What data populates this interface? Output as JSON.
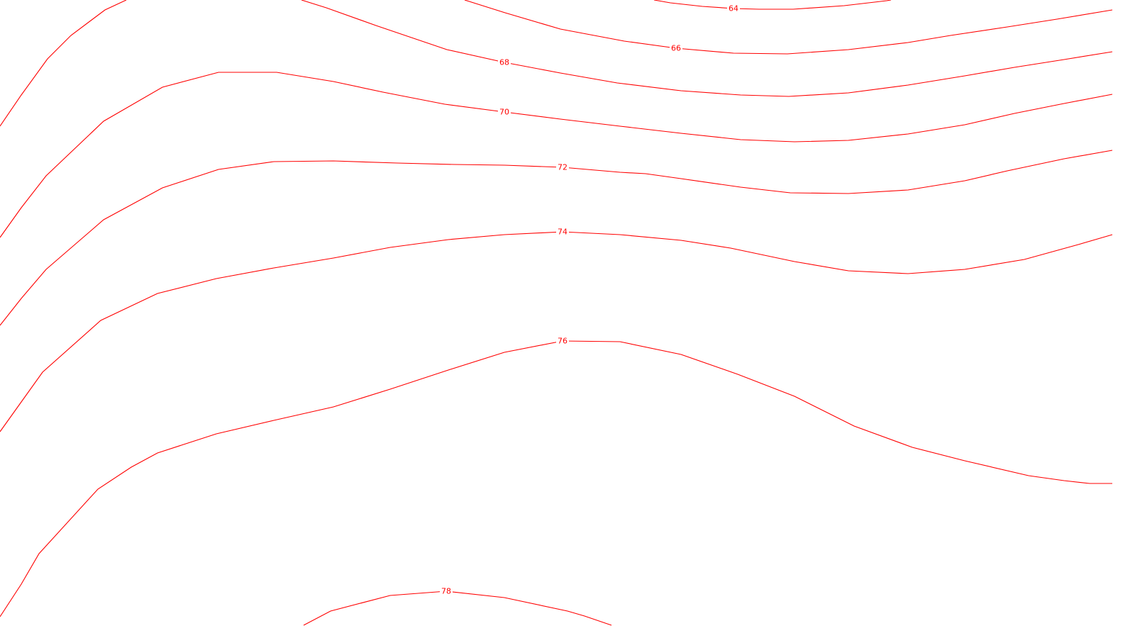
{
  "map": {
    "line_color": "#ff0000",
    "background": "#ffffff",
    "contours": [
      {
        "value": 64,
        "label": "64"
      },
      {
        "value": 66,
        "label": "66"
      },
      {
        "value": 68,
        "label": "68"
      },
      {
        "value": 70,
        "label": "70"
      },
      {
        "value": 72,
        "label": "72"
      },
      {
        "value": 74,
        "label": "74"
      },
      {
        "value": 76,
        "label": "76"
      },
      {
        "value": 78,
        "label": "78"
      }
    ]
  }
}
